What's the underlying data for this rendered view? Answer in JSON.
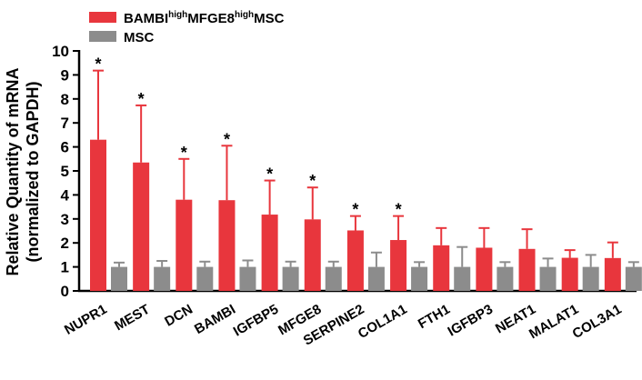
{
  "chart_data": {
    "type": "bar",
    "ylabel_line1": "Relative Quantity of mRNA",
    "ylabel_line2": "(normalized to GAPDH)",
    "ylim": [
      0,
      10
    ],
    "yticks": [
      "0",
      "1",
      "2",
      "3",
      "4",
      "5",
      "6",
      "7",
      "8",
      "9",
      "10"
    ],
    "categories": [
      "NUPR1",
      "MEST",
      "DCN",
      "BAMBI",
      "IGFBP5",
      "MFGE8",
      "SERPINE2",
      "COL1A1",
      "FTH1",
      "IGFBP3",
      "NEAT1",
      "MALAT1",
      "COL3A1"
    ],
    "legend_position": "top-left",
    "series": [
      {
        "legend": {
          "p1": "BAMBI",
          "s1": "high",
          "p2": "MFGE8",
          "s2": "high",
          "p3": "MSC"
        },
        "color": "#e8363d",
        "values": [
          6.3,
          5.35,
          3.8,
          3.78,
          3.18,
          2.98,
          2.52,
          2.12,
          1.9,
          1.8,
          1.75,
          1.38,
          1.37
        ],
        "errors": [
          2.88,
          2.38,
          1.7,
          2.27,
          1.42,
          1.33,
          0.6,
          1.0,
          0.72,
          0.82,
          0.82,
          0.32,
          0.65
        ]
      },
      {
        "legend": {
          "p1": "MSC"
        },
        "color": "#8c8c8c",
        "values": [
          1,
          1,
          1,
          1,
          1,
          1,
          1,
          1,
          1,
          1,
          1,
          1,
          1
        ],
        "errors": [
          0.18,
          0.25,
          0.22,
          0.27,
          0.22,
          0.22,
          0.6,
          0.2,
          0.83,
          0.2,
          0.35,
          0.5,
          0.2
        ]
      }
    ],
    "significance_marker": "*",
    "significant": [
      true,
      true,
      true,
      true,
      true,
      true,
      true,
      true,
      false,
      false,
      false,
      false,
      false
    ]
  }
}
